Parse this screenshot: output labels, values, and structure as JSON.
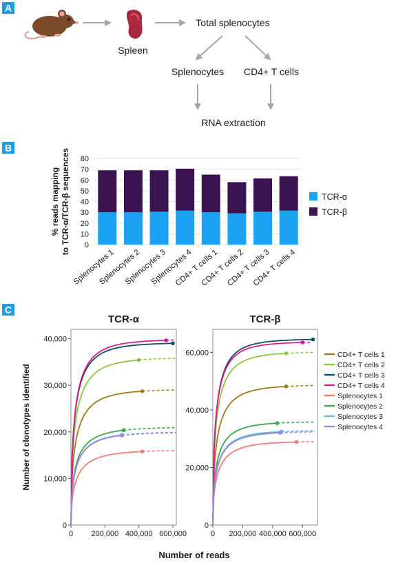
{
  "panels": {
    "a": "A",
    "b": "B",
    "c": "C"
  },
  "flow": {
    "spleen": "Spleen",
    "total": "Total splenocytes",
    "splenocytes": "Splenocytes",
    "cd4": "CD4+ T cells",
    "rna": "RNA extraction"
  },
  "colors": {
    "panel_badge": "#1e9be6",
    "tcr_alpha": "#1da1f2",
    "tcr_beta": "#3b1350",
    "arrow": "#a6a6a6"
  },
  "chart_data": [
    {
      "type": "bar",
      "stacked": true,
      "ylabel": "% reads mapping to TCR-α/TCR-β sequences",
      "ylim": [
        0,
        80
      ],
      "yticks": [
        0,
        10,
        20,
        30,
        40,
        50,
        60,
        70,
        80
      ],
      "categories": [
        "Splenocytes 1",
        "Splenocytes 2",
        "Splenocytes 3",
        "Splenocytes 4",
        "CD4+ T cells 1",
        "CD4+ T cells 2",
        "CD4+ T cells 3",
        "CD4+ T cells 4"
      ],
      "series": [
        {
          "name": "TCR-α",
          "color": "#1da1f2",
          "values": [
            30,
            30,
            30.5,
            31.5,
            30,
            29,
            30.5,
            31.5
          ]
        },
        {
          "name": "TCR-β",
          "color": "#3b1350",
          "values": [
            39,
            39,
            38.5,
            39,
            35,
            29,
            31,
            32
          ]
        }
      ],
      "legend_position": "right",
      "grid": "horizontal"
    },
    {
      "type": "line",
      "title": "TCR-α",
      "xlabel": "Number of reads",
      "ylabel": "Number of clonotypes identified",
      "xlim": [
        0,
        620000
      ],
      "ylim": [
        0,
        42000
      ],
      "xticks": [
        0,
        200000,
        400000,
        600000
      ],
      "xtick_labels": [
        "0",
        "200,000",
        "400,000",
        "600,000"
      ],
      "yticks": [
        0,
        10000,
        20000,
        30000,
        40000
      ],
      "ytick_labels": [
        "0",
        "10,000",
        "20,000",
        "30,000",
        "40,000"
      ],
      "series": [
        {
          "name": "CD4+ T cells 1",
          "color": "#a07a17",
          "xobs": 420000,
          "yobs": 27500,
          "xmax": 620000,
          "ymax": 29000,
          "k": 0.042
        },
        {
          "name": "CD4+ T cells 2",
          "color": "#8cc63f",
          "xobs": 400000,
          "yobs": 33800,
          "xmax": 620000,
          "ymax": 35800,
          "k": 0.04
        },
        {
          "name": "CD4+ T cells 3",
          "color": "#154b63",
          "xobs": 600000,
          "yobs": 39000,
          "xmax": 600000,
          "ymax": 39000,
          "k": 0.038
        },
        {
          "name": "CD4+ T cells 4",
          "color": "#d61f8e",
          "xobs": 560000,
          "yobs": 39200,
          "xmax": 610000,
          "ymax": 39700,
          "k": 0.038
        },
        {
          "name": "Splenocytes 1",
          "color": "#f07c73",
          "xobs": 420000,
          "yobs": 15400,
          "xmax": 620000,
          "ymax": 16000,
          "k": 0.05
        },
        {
          "name": "Splenocytes 2",
          "color": "#3aa644",
          "xobs": 310000,
          "yobs": 19000,
          "xmax": 620000,
          "ymax": 20900,
          "k": 0.045
        },
        {
          "name": "Splenocytes 3",
          "color": "#58c0e3",
          "xobs": 300000,
          "yobs": 18100,
          "xmax": 620000,
          "ymax": 19900,
          "k": 0.045
        },
        {
          "name": "Splenocytes 4",
          "color": "#9b87d6",
          "xobs": 300000,
          "yobs": 18000,
          "xmax": 620000,
          "ymax": 19800,
          "k": 0.045
        }
      ]
    },
    {
      "type": "line",
      "title": "TCR-β",
      "xlabel": "Number of reads",
      "xlim": [
        0,
        700000
      ],
      "ylim": [
        0,
        68000
      ],
      "xticks": [
        0,
        200000,
        400000,
        600000
      ],
      "xtick_labels": [
        "0",
        "200,000",
        "400,000",
        "600,000"
      ],
      "yticks": [
        0,
        20000,
        40000,
        60000
      ],
      "ytick_labels": [
        "0",
        "20,000",
        "40,000",
        "60,000"
      ],
      "series": [
        {
          "name": "CD4+ T cells 1",
          "color": "#a07a17",
          "xobs": 490000,
          "yobs": 46000,
          "xmax": 680000,
          "ymax": 48500,
          "k": 0.04
        },
        {
          "name": "CD4+ T cells 2",
          "color": "#8cc63f",
          "xobs": 490000,
          "yobs": 57000,
          "xmax": 680000,
          "ymax": 60000,
          "k": 0.036
        },
        {
          "name": "CD4+ T cells 3",
          "color": "#154b63",
          "xobs": 670000,
          "yobs": 64500,
          "xmax": 670000,
          "ymax": 64500,
          "k": 0.034
        },
        {
          "name": "CD4+ T cells 4",
          "color": "#d61f8e",
          "xobs": 600000,
          "yobs": 62000,
          "xmax": 660000,
          "ymax": 63500,
          "k": 0.034
        },
        {
          "name": "Splenocytes 1",
          "color": "#f07c73",
          "xobs": 560000,
          "yobs": 28300,
          "xmax": 680000,
          "ymax": 29000,
          "k": 0.045
        },
        {
          "name": "Splenocytes 2",
          "color": "#3aa644",
          "xobs": 430000,
          "yobs": 33500,
          "xmax": 680000,
          "ymax": 35800,
          "k": 0.04
        },
        {
          "name": "Splenocytes 3",
          "color": "#58c0e3",
          "xobs": 460000,
          "yobs": 31000,
          "xmax": 680000,
          "ymax": 32800,
          "k": 0.042
        },
        {
          "name": "Splenocytes 4",
          "color": "#9b87d6",
          "xobs": 450000,
          "yobs": 30500,
          "xmax": 680000,
          "ymax": 32400,
          "k": 0.042
        }
      ],
      "legend_position": "right"
    }
  ]
}
